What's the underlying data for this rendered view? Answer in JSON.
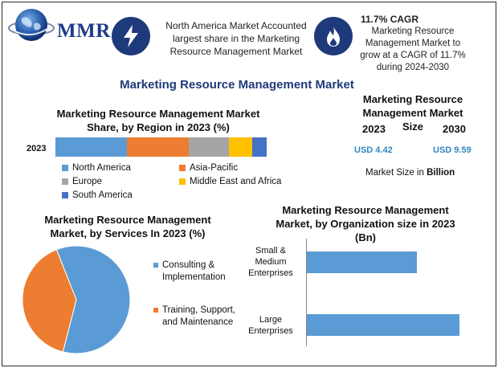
{
  "logo": {
    "text": "MMR",
    "icon": "globe-icon"
  },
  "cards": [
    {
      "icon": "lightning-bolt-icon",
      "text": "North America Market Accounted largest share in the Marketing Resource Management Market"
    },
    {
      "icon": "flame-icon",
      "title": "11.7% CAGR",
      "text": "Marketing Resource Management Market to grow at a CAGR of 11.7% during 2024-2030"
    }
  ],
  "main_title": "Marketing Resource Management Market",
  "market_size": {
    "title": "Marketing Resource Management Market Size",
    "year1": "2023",
    "year2": "2030",
    "value1": "USD 4.42",
    "value2": "USD 9.59",
    "unit_prefix": "Market Size in ",
    "unit_bold": "Billion"
  },
  "colors": {
    "north_america": "#5b9bd5",
    "asia_pacific": "#ed7d31",
    "europe": "#a5a5a5",
    "middle_east_africa": "#ffc000",
    "south_america": "#4472c4",
    "icon_bg": "#1f3a7a",
    "title": "#1f3a7a",
    "value": "#2e86c1"
  },
  "chart_data": [
    {
      "type": "bar",
      "orientation": "horizontal-stacked",
      "title": "Marketing Resource Management Market Share, by Region in 2023 (%)",
      "categories": [
        "2023"
      ],
      "series": [
        {
          "name": "North America",
          "values": [
            34
          ]
        },
        {
          "name": "Asia-Pacific",
          "values": [
            29
          ]
        },
        {
          "name": "Europe",
          "values": [
            19
          ]
        },
        {
          "name": "Middle East and Africa",
          "values": [
            11
          ]
        },
        {
          "name": "South America",
          "values": [
            7
          ]
        }
      ],
      "legend": "bottom"
    },
    {
      "type": "pie",
      "title": "Marketing Resource Management Market, by Services In 2023 (%)",
      "labels": [
        "Consulting & Implementation",
        "Training, Support, and Maintenance"
      ],
      "values": [
        60,
        40
      ],
      "legend": "right"
    },
    {
      "type": "bar",
      "orientation": "horizontal",
      "title": "Marketing Resource Management Market, by Organization size in 2023 (Bn)",
      "categories": [
        "Small & Medium Enterprises",
        "Large Enterprises"
      ],
      "values": [
        1.85,
        2.57
      ],
      "xlim": [
        0,
        2.57
      ]
    }
  ]
}
